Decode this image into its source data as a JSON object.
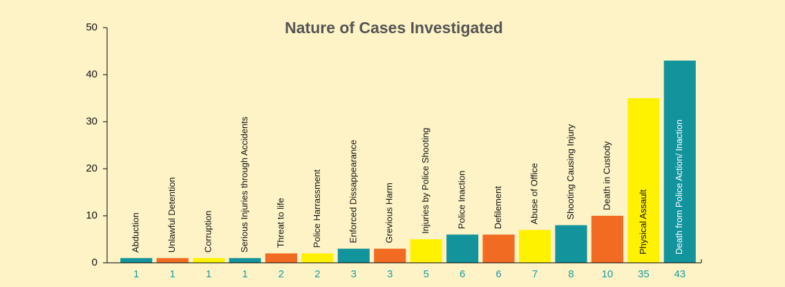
{
  "chart_data": {
    "type": "bar",
    "title": "Nature of Cases Investigated",
    "categories": [
      "Abduction",
      "Unlawful Detention",
      "Corruption",
      "Serious Injuries through Accidents",
      "Threat to life",
      "Police Harrassment",
      "Enforced Dissappearance",
      "Grevious Harm",
      "Injuries by Police Shooting",
      "Police Inaction",
      "Defilement",
      "Abuse of Office",
      "Shooting Causing Injury",
      "Death in Custody",
      "Physical Assault",
      "Death from Police Action/ Inaction"
    ],
    "values": [
      1,
      1,
      1,
      1,
      2,
      2,
      3,
      3,
      5,
      6,
      6,
      7,
      8,
      10,
      35,
      43
    ],
    "colors": [
      "#13949c",
      "#f26b22",
      "#fff200",
      "#13949c",
      "#f26b22",
      "#fff200",
      "#13949c",
      "#f26b22",
      "#fff200",
      "#13949c",
      "#f26b22",
      "#fff200",
      "#13949c",
      "#f26b22",
      "#fff200",
      "#13949c"
    ],
    "ylim": [
      0,
      50
    ],
    "yticks": [
      0,
      10,
      20,
      30,
      40,
      50
    ]
  }
}
